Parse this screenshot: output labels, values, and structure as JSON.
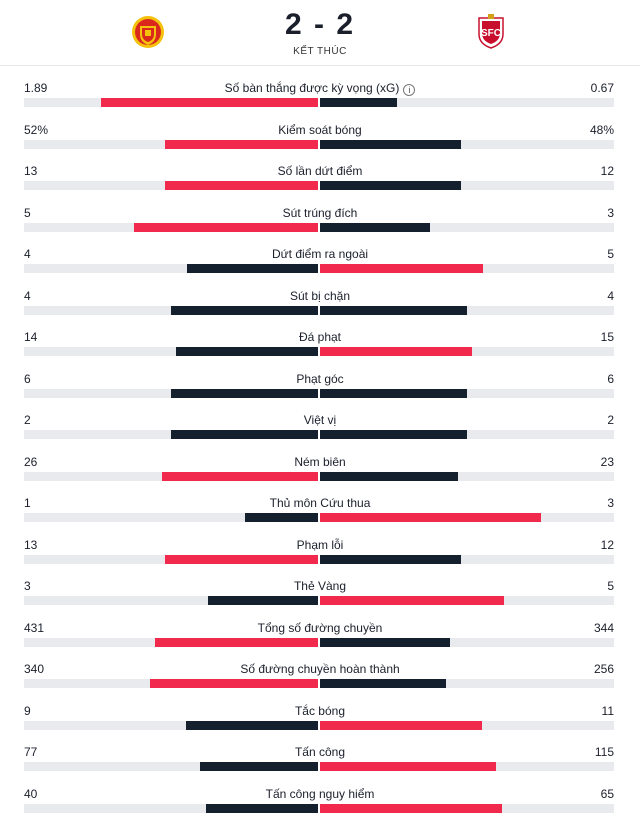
{
  "match": {
    "score": "2 - 2",
    "status": "KẾT THÚC",
    "home_logo": "manchester-united-crest",
    "away_logo": "sevilla-crest"
  },
  "colors": {
    "winner": "#f0294d",
    "other": "#14202d",
    "track": "#e9eaee"
  },
  "stats": [
    {
      "label": "Số bàn thắng được kỳ vọng (xG)",
      "home": "1.89",
      "away": "0.67",
      "h": 1.89,
      "a": 0.67,
      "info": true
    },
    {
      "label": "Kiểm soát bóng",
      "home": "52%",
      "away": "48%",
      "h": 52,
      "a": 48
    },
    {
      "label": "Số lần dứt điểm",
      "home": "13",
      "away": "12",
      "h": 13,
      "a": 12
    },
    {
      "label": "Sút trúng đích",
      "home": "5",
      "away": "3",
      "h": 5,
      "a": 3
    },
    {
      "label": "Dứt điểm ra ngoài",
      "home": "4",
      "away": "5",
      "h": 4,
      "a": 5
    },
    {
      "label": "Sút bị chặn",
      "home": "4",
      "away": "4",
      "h": 4,
      "a": 4
    },
    {
      "label": "Đá phạt",
      "home": "14",
      "away": "15",
      "h": 14,
      "a": 15
    },
    {
      "label": "Phạt góc",
      "home": "6",
      "away": "6",
      "h": 6,
      "a": 6
    },
    {
      "label": "Việt vị",
      "home": "2",
      "away": "2",
      "h": 2,
      "a": 2
    },
    {
      "label": "Ném biên",
      "home": "26",
      "away": "23",
      "h": 26,
      "a": 23
    },
    {
      "label": "Thủ môn Cứu thua",
      "home": "1",
      "away": "3",
      "h": 1,
      "a": 3
    },
    {
      "label": "Phạm lỗi",
      "home": "13",
      "away": "12",
      "h": 13,
      "a": 12
    },
    {
      "label": "Thẻ Vàng",
      "home": "3",
      "away": "5",
      "h": 3,
      "a": 5
    },
    {
      "label": "Tổng số đường chuyền",
      "home": "431",
      "away": "344",
      "h": 431,
      "a": 344
    },
    {
      "label": "Số đường chuyền hoàn thành",
      "home": "340",
      "away": "256",
      "h": 340,
      "a": 256
    },
    {
      "label": "Tắc bóng",
      "home": "9",
      "away": "11",
      "h": 9,
      "a": 11
    },
    {
      "label": "Tấn công",
      "home": "77",
      "away": "115",
      "h": 77,
      "a": 115
    },
    {
      "label": "Tấn công nguy hiểm",
      "home": "40",
      "away": "65",
      "h": 40,
      "a": 65
    }
  ]
}
